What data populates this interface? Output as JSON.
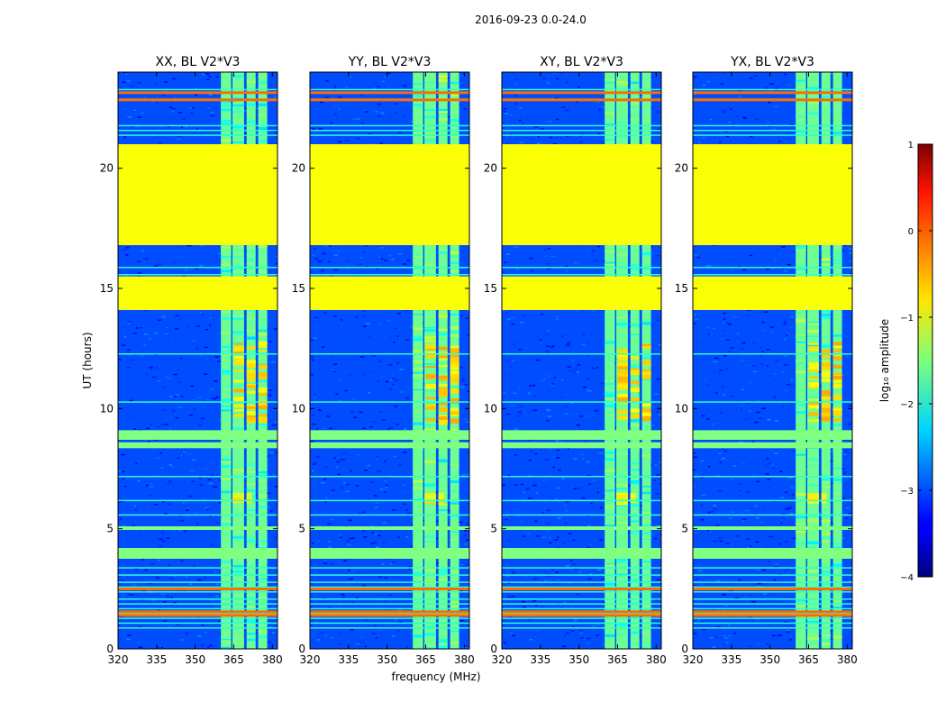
{
  "figure": {
    "suptitle": "2016-09-23 0.0-24.0",
    "cmap": "jet"
  },
  "chart_data": {
    "type": "heatmap",
    "shared_xlabel": "frequency (MHz)",
    "shared_ylabel": "UT (hours)",
    "xlim": [
      320,
      382
    ],
    "ylim": [
      0,
      24
    ],
    "x_ticks": [
      320,
      335,
      350,
      365,
      380
    ],
    "y_ticks": [
      0,
      5,
      10,
      15,
      20
    ],
    "panels": [
      {
        "title": "XX, BL V2*V3",
        "rfi_intensity": 1.0
      },
      {
        "title": "YY, BL V2*V3",
        "rfi_intensity": 1.15
      },
      {
        "title": "XY, BL V2*V3",
        "rfi_intensity": 0.95
      },
      {
        "title": "YX, BL V2*V3",
        "rfi_intensity": 1.1
      }
    ],
    "background_log_amplitude": -3.0,
    "rfi_band_mhz": [
      360,
      380
    ],
    "rfi_channels_mhz": [
      [
        360,
        364
      ],
      [
        364.5,
        369
      ],
      [
        370,
        373.5
      ],
      [
        374.5,
        378
      ]
    ],
    "rfi_band_log_amplitude": -1.6,
    "flagged_value_log_amplitude": -0.9,
    "flagged_ut_ranges": [
      [
        16.8,
        21.0
      ],
      [
        14.1,
        15.5
      ]
    ],
    "broadband_bright_ut_ranges": [
      [
        8.35,
        8.6
      ],
      [
        8.7,
        9.1
      ],
      [
        4.95,
        5.1
      ],
      [
        3.75,
        4.2
      ]
    ],
    "rfi_lines_ut": [
      23.3,
      22.9,
      21.8,
      21.6,
      21.4,
      15.9,
      15.6,
      12.3,
      10.3,
      7.2,
      6.2,
      5.6,
      3.4,
      3.1,
      2.8,
      2.6,
      2.4,
      2.1,
      1.9,
      1.7,
      1.5,
      1.3,
      1.1,
      0.9
    ],
    "orange_lines_ut": [
      23.2,
      22.9,
      2.55,
      1.6,
      1.45
    ],
    "hot_spots": [
      {
        "mhz": [
          365,
          379
        ],
        "ut": [
          9.5,
          12.8
        ],
        "log_amplitude": -0.7
      },
      {
        "mhz": [
          364,
          372
        ],
        "ut": [
          6.2,
          6.5
        ],
        "log_amplitude": -0.9
      }
    ],
    "colorbar": {
      "label": "log₁₀ amplitude",
      "vmin": -4,
      "vmax": 1,
      "ticks": [
        1,
        0,
        -1,
        -2,
        -3,
        -4
      ],
      "tick_labels": [
        "1",
        "0",
        "−1",
        "−2",
        "−3",
        "−4"
      ]
    }
  }
}
